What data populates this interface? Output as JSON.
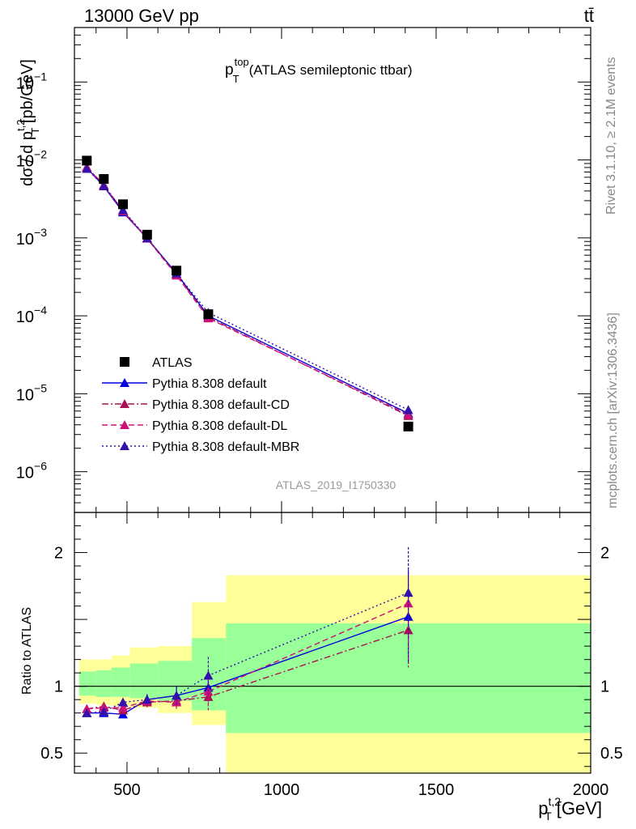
{
  "header": {
    "energy_label": "13000 GeV pp",
    "process_label": "tt̄"
  },
  "side": {
    "rivet_label": "Rivet 3.1.10, ≥ 2.1M events",
    "mcplots_label": "mcplots.cern.ch [arXiv:1306.3436]"
  },
  "chart_data": [
    {
      "type": "scatter",
      "title": "(ATLAS semileptonic ttbar)",
      "title_var_main": "p",
      "title_var_sup": "top",
      "title_var_sub": "T",
      "analysis_label": "ATLAS_2019_I1750330",
      "ylabel": "dσ / d p_T^{t,2} [pb/GeV]",
      "ylabel_parts": {
        "pre": "dσ / d p",
        "sup": "t,2",
        "sub": "T",
        "post": " [pb/GeV]"
      },
      "y_scale": "log",
      "xlim": [
        330,
        2000
      ],
      "ylim": [
        3e-07,
        0.5
      ],
      "y_ticks": [
        {
          "value": 1e-06,
          "base": "10",
          "exp": "−6"
        },
        {
          "value": 1e-05,
          "base": "10",
          "exp": "−5"
        },
        {
          "value": 0.0001,
          "base": "10",
          "exp": "−4"
        },
        {
          "value": 0.001,
          "base": "10",
          "exp": "−3"
        },
        {
          "value": 0.01,
          "base": "10",
          "exp": "−2"
        },
        {
          "value": 0.1,
          "base": "10",
          "exp": "−1"
        }
      ],
      "legend_position": "bottom-left",
      "x": [
        370,
        425,
        487,
        565,
        660,
        763,
        1410
      ],
      "series": [
        {
          "name": "ATLAS",
          "color": "#000000",
          "marker": "square",
          "style": "none",
          "values": [
            0.0098,
            0.0057,
            0.0027,
            0.0011,
            0.00038,
            0.000105,
            3.8e-06
          ]
        },
        {
          "name": "Pythia 8.308 default",
          "color": "#0000dd",
          "marker": "triangle",
          "style": "solid",
          "values": [
            0.0079,
            0.0046,
            0.00213,
            0.00099,
            0.00035,
            0.0001,
            5.6e-06
          ]
        },
        {
          "name": "Pythia 8.308 default-CD",
          "color": "#aa1155",
          "marker": "triangle",
          "style": "dashdot",
          "values": [
            0.0081,
            0.0048,
            0.00222,
            0.00099,
            0.00034,
            9.6e-05,
            5.2e-06
          ]
        },
        {
          "name": "Pythia 8.308 default-DL",
          "color": "#cc1177",
          "marker": "triangle",
          "style": "dashed",
          "values": [
            0.0081,
            0.0047,
            0.0022,
            0.00098,
            0.00033,
            9.3e-05,
            5.4e-06
          ]
        },
        {
          "name": "Pythia 8.308 default-MBR",
          "color": "#3311aa",
          "marker": "triangle",
          "style": "dotted",
          "values": [
            0.0077,
            0.0046,
            0.00228,
            0.00099,
            0.00035,
            0.00011,
            6.2e-06
          ]
        }
      ]
    },
    {
      "type": "line",
      "ylabel": "Ratio to ATLAS",
      "xlabel": "p_T^{t,2} [GeV]",
      "xlabel_parts": {
        "pre": "p",
        "sup": "t,2",
        "sub": "T",
        "post": " [GeV]"
      },
      "xlim": [
        330,
        2000
      ],
      "ylim": [
        0.35,
        2.3
      ],
      "y_ticks": [
        0.5,
        1,
        2
      ],
      "y_tick_labels": [
        "0.5",
        "1",
        "2"
      ],
      "x_ticks": [
        500,
        1000,
        1500,
        2000
      ],
      "x_tick_labels": [
        "500",
        "1000",
        "1500",
        "2000"
      ],
      "bins": [
        [
          345,
          400
        ],
        [
          400,
          450
        ],
        [
          450,
          510
        ],
        [
          510,
          600
        ],
        [
          600,
          710
        ],
        [
          710,
          820
        ],
        [
          820,
          2000
        ]
      ],
      "band_inner": [
        [
          0.93,
          1.11
        ],
        [
          0.92,
          1.12
        ],
        [
          0.92,
          1.14
        ],
        [
          0.91,
          1.17
        ],
        [
          0.89,
          1.19
        ],
        [
          0.82,
          1.36
        ],
        [
          0.65,
          1.47
        ]
      ],
      "band_outer": [
        [
          0.87,
          1.2
        ],
        [
          0.86,
          1.2
        ],
        [
          0.85,
          1.23
        ],
        [
          0.84,
          1.29
        ],
        [
          0.8,
          1.3
        ],
        [
          0.71,
          1.63
        ],
        [
          0.35,
          1.83
        ]
      ],
      "x": [
        370,
        425,
        487,
        565,
        660,
        763,
        1410
      ],
      "series": [
        {
          "name": "Pythia 8.308 default",
          "color": "#0000dd",
          "style": "solid",
          "values": [
            0.8,
            0.8,
            0.79,
            0.9,
            0.93,
            0.99,
            1.52
          ],
          "err": [
            0.02,
            0.02,
            0.03,
            0.04,
            0.07,
            0.1,
            0.35
          ]
        },
        {
          "name": "Pythia 8.308 default-CD",
          "color": "#aa1155",
          "style": "dashdot",
          "values": [
            0.83,
            0.85,
            0.82,
            0.88,
            0.89,
            0.92,
            1.42
          ],
          "err": [
            0.02,
            0.02,
            0.03,
            0.04,
            0.06,
            0.1,
            0.28
          ]
        },
        {
          "name": "Pythia 8.308 default-DL",
          "color": "#cc1177",
          "style": "dashed",
          "values": [
            0.83,
            0.84,
            0.84,
            0.89,
            0.88,
            0.96,
            1.62
          ],
          "err": [
            0.02,
            0.02,
            0.03,
            0.04,
            0.06,
            0.1,
            0.3
          ]
        },
        {
          "name": "Pythia 8.308 default-MBR",
          "color": "#3311aa",
          "style": "dotted",
          "values": [
            0.8,
            0.81,
            0.88,
            0.9,
            0.93,
            1.08,
            1.7
          ],
          "err": [
            0.02,
            0.02,
            0.03,
            0.04,
            0.07,
            0.14,
            0.34
          ]
        }
      ]
    }
  ]
}
